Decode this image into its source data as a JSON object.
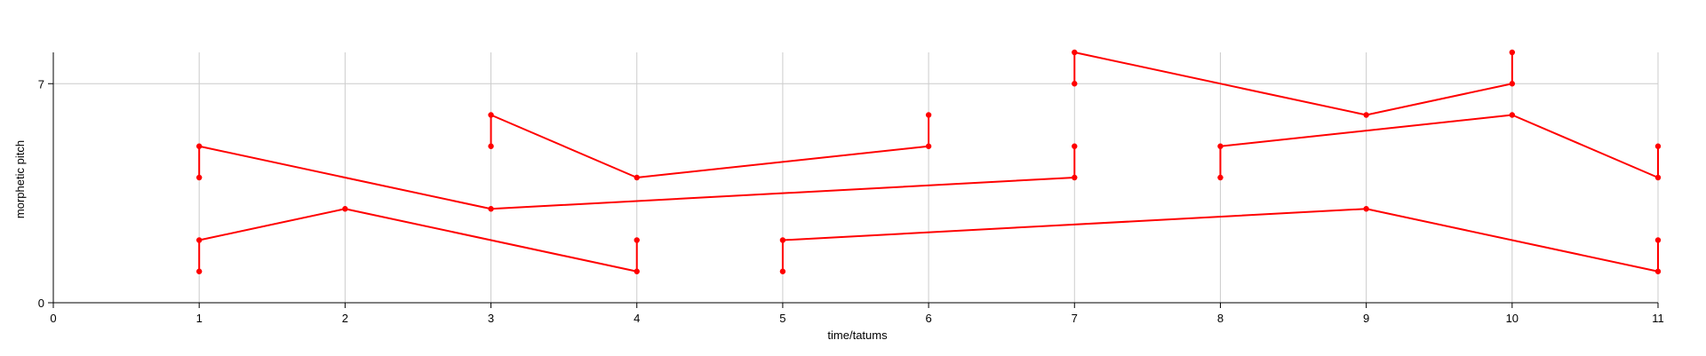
{
  "chart_data": {
    "type": "line",
    "xlabel": "time/tatums",
    "ylabel": "morphetic pitch",
    "xlim": [
      0,
      11
    ],
    "ylim": [
      0,
      8
    ],
    "x_ticks": [
      "0",
      "1",
      "2",
      "3",
      "4",
      "5",
      "6",
      "7",
      "8",
      "9",
      "10",
      "11"
    ],
    "y_ticks": [
      {
        "value": 0,
        "label": "0"
      },
      {
        "value": 7,
        "label": "7"
      }
    ],
    "grid": {
      "vertical": true,
      "horizontal_at": [
        7
      ]
    },
    "line_color": "#ff0000",
    "grid_color": "#cccccc",
    "series": [
      {
        "points": [
          [
            1,
            1
          ],
          [
            1,
            2
          ],
          [
            2,
            3
          ],
          [
            4,
            1
          ],
          [
            4,
            2
          ]
        ]
      },
      {
        "points": [
          [
            1,
            4
          ],
          [
            1,
            5
          ],
          [
            3,
            3
          ],
          [
            7,
            4
          ],
          [
            7,
            5
          ]
        ]
      },
      {
        "points": [
          [
            3,
            5
          ],
          [
            3,
            6
          ],
          [
            4,
            4
          ],
          [
            6,
            5
          ],
          [
            6,
            6
          ]
        ]
      },
      {
        "points": [
          [
            5,
            1
          ],
          [
            5,
            2
          ],
          [
            9,
            3
          ],
          [
            11,
            1
          ],
          [
            11,
            2
          ]
        ]
      },
      {
        "points": [
          [
            7,
            7
          ],
          [
            7,
            8
          ],
          [
            9,
            6
          ],
          [
            10,
            7
          ],
          [
            10,
            8
          ]
        ]
      },
      {
        "points": [
          [
            8,
            4
          ],
          [
            8,
            5
          ],
          [
            10,
            6
          ],
          [
            11,
            4
          ],
          [
            11,
            5
          ]
        ]
      }
    ]
  }
}
